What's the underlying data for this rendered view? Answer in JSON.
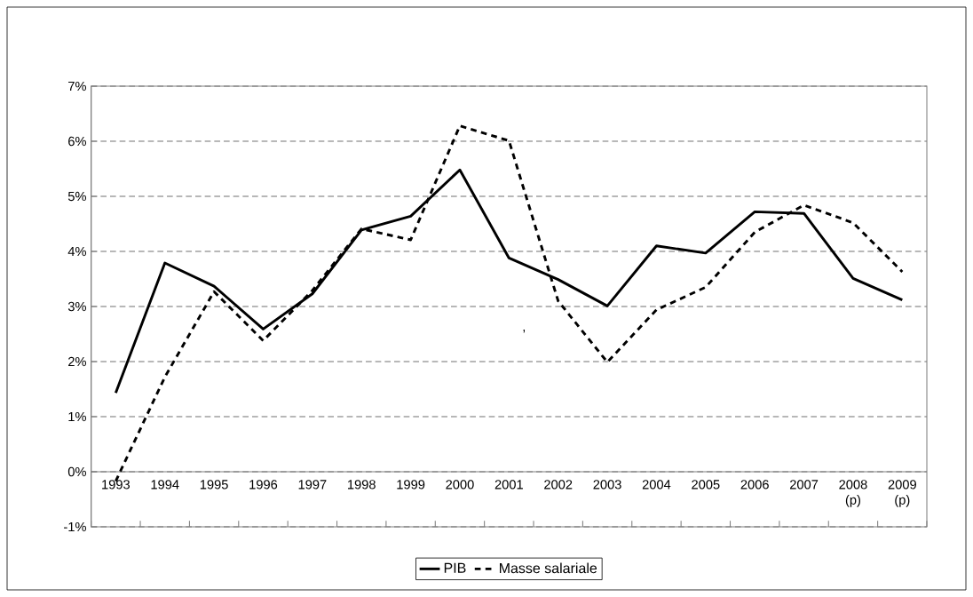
{
  "chart_data": {
    "type": "line",
    "categories": [
      "1993",
      "1994",
      "1995",
      "1996",
      "1997",
      "1998",
      "1999",
      "2000",
      "2001",
      "2002",
      "2003",
      "2004",
      "2005",
      "2006",
      "2007",
      "2008 (p)",
      "2009 (p)"
    ],
    "series": [
      {
        "name": "PIB",
        "color": "#000000",
        "line_style": "solid",
        "values": [
          1.43,
          3.79,
          3.37,
          2.59,
          3.23,
          4.39,
          4.64,
          5.48,
          3.88,
          3.49,
          3.01,
          4.1,
          3.97,
          4.72,
          4.69,
          3.51,
          3.12
        ]
      },
      {
        "name": "Masse salariale",
        "color": "#000000",
        "line_style": "dashed",
        "values": [
          -0.17,
          1.72,
          3.27,
          2.38,
          3.29,
          4.41,
          4.21,
          6.28,
          6.01,
          3.1,
          1.99,
          2.94,
          3.35,
          4.35,
          4.84,
          4.52,
          3.63
        ]
      }
    ],
    "ylim": [
      -1,
      7
    ],
    "yticks": [
      {
        "value": -1,
        "label": "-1%"
      },
      {
        "value": 0,
        "label": "0%"
      },
      {
        "value": 1,
        "label": "1%"
      },
      {
        "value": 2,
        "label": "2%"
      },
      {
        "value": 3,
        "label": "3%"
      },
      {
        "value": 4,
        "label": "4%"
      },
      {
        "value": 5,
        "label": "5%"
      },
      {
        "value": 6,
        "label": "6%"
      },
      {
        "value": 7,
        "label": "7%"
      }
    ],
    "grid": "y",
    "legend": "bottom",
    "marker": "none",
    "annotations": [
      ","
    ]
  }
}
